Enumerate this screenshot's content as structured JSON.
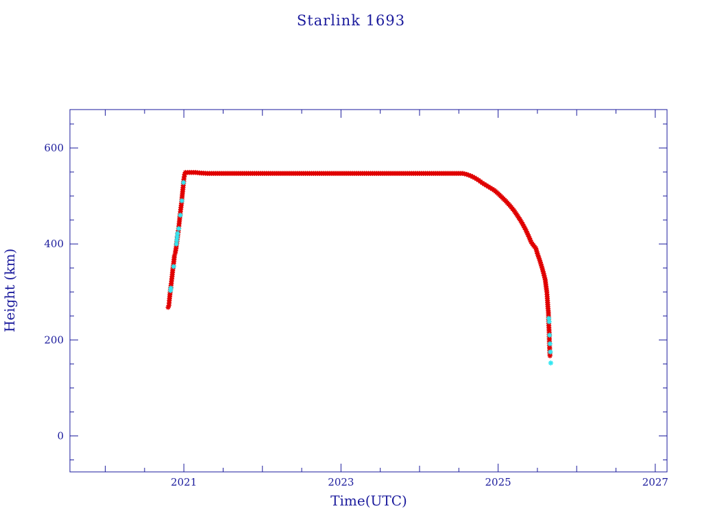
{
  "chart_data": {
    "type": "scatter",
    "title": "Starlink 1693",
    "xlabel": "Time(UTC)",
    "ylabel": "Height (km)",
    "xlim": [
      2019.55,
      2027.15
    ],
    "ylim": [
      -75,
      680
    ],
    "x_ticks": [
      2021,
      2023,
      2025,
      2027
    ],
    "x_tick_labels": [
      "2021",
      "2023",
      "2025",
      "2027"
    ],
    "y_ticks": [
      0,
      200,
      400,
      600
    ],
    "y_tick_labels": [
      "0",
      "200",
      "400",
      "600"
    ],
    "grid": false,
    "colors": {
      "axis": "#1a1a9c",
      "primary": "#e00000",
      "secondary": "#33e6f0"
    },
    "series": [
      {
        "color": "#e00000",
        "marker": "star",
        "points": [
          [
            2020.8,
            268
          ],
          [
            2020.81,
            272
          ],
          [
            2020.815,
            282
          ],
          [
            2020.82,
            290
          ],
          [
            2020.825,
            298
          ],
          [
            2020.84,
            318
          ],
          [
            2020.85,
            332
          ],
          [
            2020.86,
            348
          ],
          [
            2020.87,
            360
          ],
          [
            2020.88,
            375
          ],
          [
            2020.89,
            381
          ],
          [
            2020.9,
            390
          ],
          [
            2020.93,
            428
          ],
          [
            2020.94,
            442
          ],
          [
            2020.95,
            458
          ],
          [
            2020.96,
            472
          ],
          [
            2020.97,
            485
          ],
          [
            2020.98,
            502
          ],
          [
            2020.99,
            518
          ],
          [
            2021.0,
            535
          ],
          [
            2021.01,
            545
          ],
          [
            2021.02,
            549
          ],
          [
            2021.05,
            549
          ],
          [
            2021.1,
            549
          ],
          [
            2021.15,
            549
          ],
          [
            2021.2,
            548
          ],
          [
            2021.3,
            547
          ],
          [
            2021.4,
            547
          ],
          [
            2021.5,
            547
          ],
          [
            2021.6,
            547
          ],
          [
            2021.7,
            547
          ],
          [
            2021.8,
            547
          ],
          [
            2021.9,
            547
          ],
          [
            2022.0,
            547
          ],
          [
            2022.1,
            547
          ],
          [
            2022.2,
            547
          ],
          [
            2022.3,
            547
          ],
          [
            2022.4,
            547
          ],
          [
            2022.5,
            547
          ],
          [
            2022.6,
            547
          ],
          [
            2022.7,
            547
          ],
          [
            2022.8,
            547
          ],
          [
            2022.9,
            547
          ],
          [
            2023.0,
            547
          ],
          [
            2023.1,
            547
          ],
          [
            2023.2,
            547
          ],
          [
            2023.3,
            547
          ],
          [
            2023.4,
            547
          ],
          [
            2023.5,
            547
          ],
          [
            2023.6,
            547
          ],
          [
            2023.7,
            547
          ],
          [
            2023.8,
            547
          ],
          [
            2023.9,
            547
          ],
          [
            2024.0,
            547
          ],
          [
            2024.1,
            547
          ],
          [
            2024.2,
            547
          ],
          [
            2024.3,
            547
          ],
          [
            2024.4,
            547
          ],
          [
            2024.5,
            547
          ],
          [
            2024.55,
            547
          ],
          [
            2024.6,
            545
          ],
          [
            2024.65,
            542
          ],
          [
            2024.7,
            538
          ],
          [
            2024.75,
            533
          ],
          [
            2024.8,
            527
          ],
          [
            2024.85,
            522
          ],
          [
            2024.9,
            517
          ],
          [
            2024.95,
            512
          ],
          [
            2025.0,
            505
          ],
          [
            2025.05,
            497
          ],
          [
            2025.1,
            489
          ],
          [
            2025.15,
            480
          ],
          [
            2025.2,
            470
          ],
          [
            2025.25,
            458
          ],
          [
            2025.3,
            445
          ],
          [
            2025.35,
            430
          ],
          [
            2025.4,
            412
          ],
          [
            2025.42,
            404
          ],
          [
            2025.45,
            397
          ],
          [
            2025.48,
            391
          ],
          [
            2025.5,
            380
          ],
          [
            2025.53,
            366
          ],
          [
            2025.56,
            350
          ],
          [
            2025.58,
            338
          ],
          [
            2025.6,
            325
          ],
          [
            2025.61,
            312
          ],
          [
            2025.62,
            300
          ],
          [
            2025.625,
            290
          ],
          [
            2025.63,
            278
          ],
          [
            2025.635,
            266
          ],
          [
            2025.64,
            258
          ],
          [
            2025.645,
            230
          ],
          [
            2025.65,
            215
          ],
          [
            2025.652,
            200
          ],
          [
            2025.655,
            185
          ],
          [
            2025.66,
            167
          ]
        ]
      },
      {
        "color": "#33e6f0",
        "marker": "star",
        "points": [
          [
            2020.83,
            303
          ],
          [
            2020.835,
            308
          ],
          [
            2020.87,
            353
          ],
          [
            2020.905,
            400
          ],
          [
            2020.91,
            408
          ],
          [
            2020.915,
            415
          ],
          [
            2020.92,
            422
          ],
          [
            2020.935,
            432
          ],
          [
            2020.955,
            460
          ],
          [
            2020.975,
            490
          ],
          [
            2020.995,
            528
          ],
          [
            2025.645,
            245
          ],
          [
            2025.65,
            238
          ],
          [
            2025.655,
            210
          ],
          [
            2025.66,
            192
          ],
          [
            2025.665,
            175
          ],
          [
            2025.67,
            152
          ]
        ]
      }
    ]
  }
}
